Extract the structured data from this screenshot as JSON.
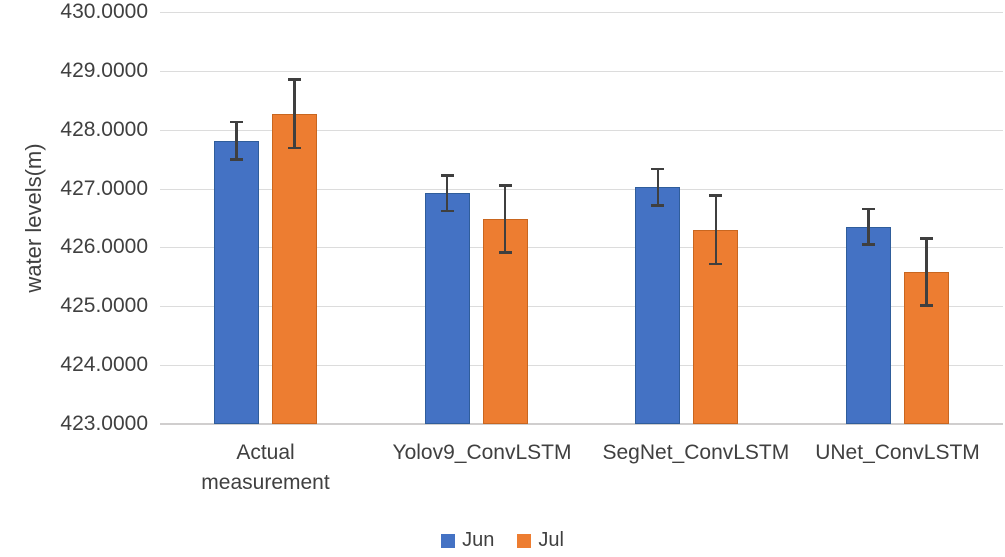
{
  "chart_data": {
    "type": "bar",
    "ylabel": "water levels(m)",
    "xlabel": "",
    "categories": [
      "Actual measurement",
      "Yolov9_ConvLSTM",
      "SegNet_ConvLSTM",
      "UNet_ConvLSTM"
    ],
    "series": [
      {
        "name": "Jun",
        "color": "#4472C4",
        "border_color": "#2F5D9B",
        "values": [
          427.81,
          426.92,
          427.02,
          426.35
        ],
        "errors": [
          0.32,
          0.3,
          0.31,
          0.3
        ]
      },
      {
        "name": "Jul",
        "color": "#ED7D31",
        "border_color": "#C9661F",
        "values": [
          428.27,
          426.48,
          426.3,
          425.58
        ],
        "errors": [
          0.58,
          0.57,
          0.58,
          0.57
        ]
      }
    ],
    "ylim": [
      423,
      430
    ],
    "ytick_step": 1,
    "yticks": [
      "430.0000",
      "429.0000",
      "428.0000",
      "427.0000",
      "426.0000",
      "425.0000",
      "424.0000",
      "423.0000"
    ],
    "grid": true,
    "legend_position": "bottom",
    "gridline_color": "#DCDCDC",
    "axis_line_color": "#D0CECE",
    "error_bar_color": "#3F3F3F",
    "text_color": "#404040"
  }
}
